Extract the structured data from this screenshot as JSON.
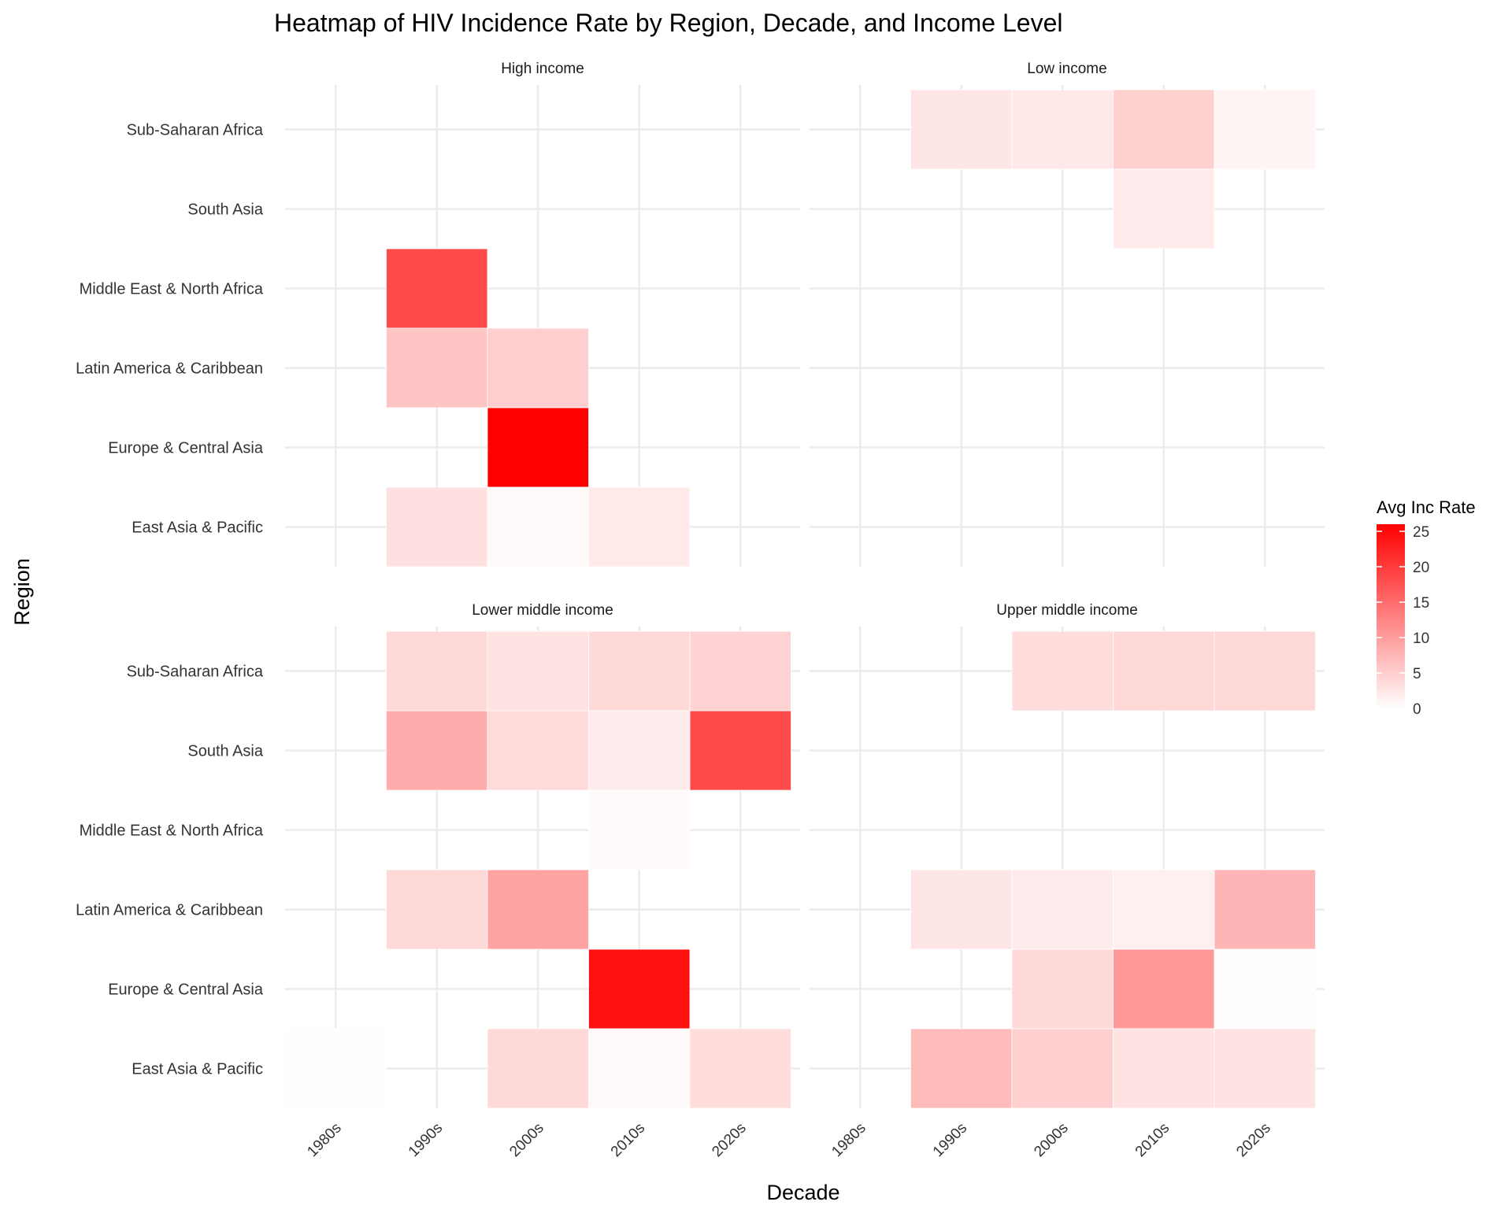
{
  "chart_data": {
    "type": "heatmap",
    "title": "Heatmap of HIV Incidence Rate by Region, Decade, and Income Level",
    "xlabel": "Decade",
    "ylabel": "Region",
    "legend_title": "Avg Inc Rate",
    "legend_placement": "right",
    "color_low": "#ffffff",
    "color_high": "#ff0000",
    "color_range": [
      0,
      26
    ],
    "legend_ticks": [
      0,
      5,
      10,
      15,
      20,
      25
    ],
    "x_categories": [
      "1980s",
      "1990s",
      "2000s",
      "2010s",
      "2020s"
    ],
    "y_categories": [
      "East Asia & Pacific",
      "Europe & Central Asia",
      "Latin America & Caribbean",
      "Middle East & North Africa",
      "South Asia",
      "Sub-Saharan Africa"
    ],
    "grid": true,
    "facets": [
      {
        "label": "High income",
        "cells": [
          {
            "region": "Middle East & North Africa",
            "decade": "1990s",
            "value": 18.5
          },
          {
            "region": "Latin America & Caribbean",
            "decade": "1990s",
            "value": 6.0
          },
          {
            "region": "Latin America & Caribbean",
            "decade": "2000s",
            "value": 5.0
          },
          {
            "region": "Europe & Central Asia",
            "decade": "2000s",
            "value": 26.0
          },
          {
            "region": "East Asia & Pacific",
            "decade": "1990s",
            "value": 3.2
          },
          {
            "region": "East Asia & Pacific",
            "decade": "2000s",
            "value": 0.5
          },
          {
            "region": "East Asia & Pacific",
            "decade": "2010s",
            "value": 2.2
          }
        ]
      },
      {
        "label": "Low income",
        "cells": [
          {
            "region": "Sub-Saharan Africa",
            "decade": "1990s",
            "value": 2.5
          },
          {
            "region": "Sub-Saharan Africa",
            "decade": "2000s",
            "value": 2.3
          },
          {
            "region": "Sub-Saharan Africa",
            "decade": "2010s",
            "value": 4.8
          },
          {
            "region": "Sub-Saharan Africa",
            "decade": "2020s",
            "value": 1.0
          },
          {
            "region": "South Asia",
            "decade": "2010s",
            "value": 2.0
          }
        ]
      },
      {
        "label": "Lower middle income",
        "cells": [
          {
            "region": "Sub-Saharan Africa",
            "decade": "1990s",
            "value": 4.0
          },
          {
            "region": "Sub-Saharan Africa",
            "decade": "2000s",
            "value": 3.0
          },
          {
            "region": "Sub-Saharan Africa",
            "decade": "2010s",
            "value": 4.0
          },
          {
            "region": "Sub-Saharan Africa",
            "decade": "2020s",
            "value": 4.5
          },
          {
            "region": "South Asia",
            "decade": "1990s",
            "value": 8.5
          },
          {
            "region": "South Asia",
            "decade": "2000s",
            "value": 3.8
          },
          {
            "region": "South Asia",
            "decade": "2010s",
            "value": 2.0
          },
          {
            "region": "South Asia",
            "decade": "2020s",
            "value": 18.5
          },
          {
            "region": "Middle East & North Africa",
            "decade": "2010s",
            "value": 0.4
          },
          {
            "region": "Latin America & Caribbean",
            "decade": "1990s",
            "value": 4.0
          },
          {
            "region": "Latin America & Caribbean",
            "decade": "2000s",
            "value": 9.5
          },
          {
            "region": "Europe & Central Asia",
            "decade": "2010s",
            "value": 24.5
          },
          {
            "region": "East Asia & Pacific",
            "decade": "1980s",
            "value": 0.2
          },
          {
            "region": "East Asia & Pacific",
            "decade": "2000s",
            "value": 4.0
          },
          {
            "region": "East Asia & Pacific",
            "decade": "2010s",
            "value": 0.6
          },
          {
            "region": "East Asia & Pacific",
            "decade": "2020s",
            "value": 3.5
          }
        ]
      },
      {
        "label": "Upper middle income",
        "cells": [
          {
            "region": "Sub-Saharan Africa",
            "decade": "2000s",
            "value": 3.5
          },
          {
            "region": "Sub-Saharan Africa",
            "decade": "2010s",
            "value": 4.0
          },
          {
            "region": "Sub-Saharan Africa",
            "decade": "2020s",
            "value": 4.0
          },
          {
            "region": "Latin America & Caribbean",
            "decade": "1990s",
            "value": 2.5
          },
          {
            "region": "Latin America & Caribbean",
            "decade": "2000s",
            "value": 2.0
          },
          {
            "region": "Latin America & Caribbean",
            "decade": "2010s",
            "value": 1.5
          },
          {
            "region": "Latin America & Caribbean",
            "decade": "2020s",
            "value": 7.5
          },
          {
            "region": "Europe & Central Asia",
            "decade": "2000s",
            "value": 4.0
          },
          {
            "region": "Europe & Central Asia",
            "decade": "2010s",
            "value": 10.5
          },
          {
            "region": "Europe & Central Asia",
            "decade": "2020s",
            "value": 0.3
          },
          {
            "region": "East Asia & Pacific",
            "decade": "1990s",
            "value": 7.0
          },
          {
            "region": "East Asia & Pacific",
            "decade": "2000s",
            "value": 5.0
          },
          {
            "region": "East Asia & Pacific",
            "decade": "2010s",
            "value": 3.0
          },
          {
            "region": "East Asia & Pacific",
            "decade": "2020s",
            "value": 3.0
          }
        ]
      }
    ]
  }
}
